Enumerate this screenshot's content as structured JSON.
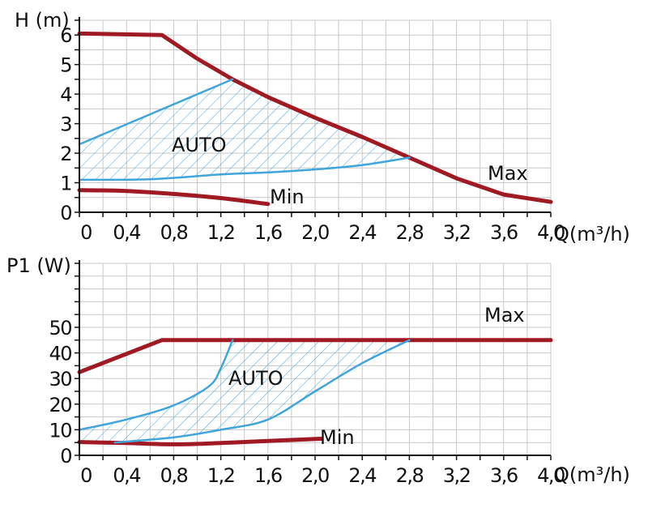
{
  "chart_data": [
    {
      "type": "line",
      "title": "",
      "ylabel": "H (m)",
      "xlabel": "Q(m³/h)",
      "ylim": [
        0,
        6.5
      ],
      "xlim": [
        0,
        4.0
      ],
      "yticks": [
        "0",
        "1",
        "2",
        "3",
        "4",
        "5",
        "6"
      ],
      "xticks": [
        "0",
        "0,4",
        "0,8",
        "1,2",
        "1,6",
        "2,0",
        "2,4",
        "2,8",
        "3,2",
        "3,6",
        "4,0"
      ],
      "grid": true,
      "series": [
        {
          "name": "Max",
          "label": "Max",
          "x": [
            0,
            0.7,
            1.0,
            1.3,
            1.6,
            2.0,
            2.4,
            2.8,
            3.2,
            3.6,
            4.0
          ],
          "y": [
            6.05,
            6.0,
            5.2,
            4.5,
            3.9,
            3.2,
            2.55,
            1.85,
            1.15,
            0.6,
            0.35
          ]
        },
        {
          "name": "Min",
          "label": "Min",
          "x": [
            0,
            0.4,
            0.8,
            1.2,
            1.6
          ],
          "y": [
            0.75,
            0.72,
            0.62,
            0.48,
            0.28
          ]
        },
        {
          "name": "AUTO upper",
          "x": [
            0,
            1.3
          ],
          "y": [
            2.3,
            4.5
          ]
        },
        {
          "name": "AUTO lower",
          "x": [
            0,
            0.6,
            1.2,
            1.6,
            2.0,
            2.4,
            2.8
          ],
          "y": [
            1.1,
            1.12,
            1.28,
            1.35,
            1.45,
            1.6,
            1.85
          ]
        }
      ],
      "region_label": "AUTO"
    },
    {
      "type": "line",
      "title": "",
      "ylabel": "P1 (W)",
      "xlabel": "Q(m³/h)",
      "ylim": [
        0,
        75
      ],
      "xlim": [
        0,
        4.0
      ],
      "yticks": [
        "0",
        "10",
        "20",
        "30",
        "40",
        "50"
      ],
      "xticks": [
        "0",
        "0,4",
        "0,8",
        "1,2",
        "1,6",
        "2,0",
        "2,4",
        "2,8",
        "3,2",
        "3,6",
        "4,0"
      ],
      "grid": true,
      "series": [
        {
          "name": "Max",
          "label": "Max",
          "x": [
            0,
            0.7,
            4.0
          ],
          "y": [
            32.5,
            45,
            45
          ]
        },
        {
          "name": "Min",
          "label": "Min",
          "x": [
            0,
            0.4,
            0.8,
            1.2,
            1.6,
            2.05
          ],
          "y": [
            5.2,
            4.8,
            4.3,
            4.8,
            5.6,
            6.5
          ]
        },
        {
          "name": "AUTO left",
          "x": [
            0,
            0.4,
            0.8,
            1.1,
            1.2,
            1.3
          ],
          "y": [
            10,
            14,
            19.5,
            27,
            34,
            45
          ]
        },
        {
          "name": "AUTO right",
          "x": [
            0.3,
            0.8,
            1.2,
            1.6,
            2.0,
            2.4,
            2.8
          ],
          "y": [
            5,
            7,
            10,
            14,
            25,
            36,
            45
          ]
        }
      ],
      "region_label": "AUTO"
    }
  ]
}
